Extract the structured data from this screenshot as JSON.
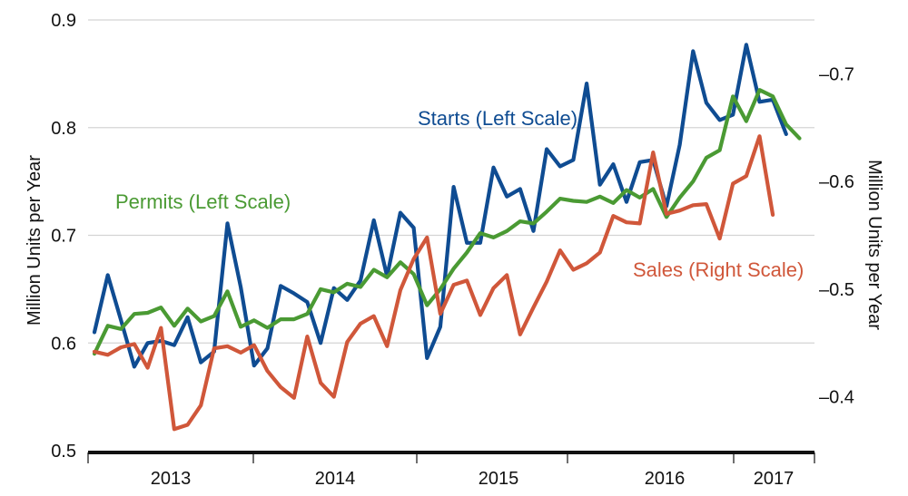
{
  "chart_data": {
    "type": "line",
    "x_start": "2012-07",
    "x_end": "2017-05",
    "x_tick_labels": [
      "2013",
      "2014",
      "2015",
      "2016",
      "2017"
    ],
    "left_axis": {
      "label": "Million Units per Year",
      "ylim": [
        0.5,
        0.9
      ],
      "ticks": [
        "0.5",
        "0.6",
        "0.7",
        "0.8",
        "0.9"
      ]
    },
    "right_axis": {
      "label": "Million Units per Year",
      "ylim": [
        0.35,
        0.75
      ],
      "ticks": [
        "–0.4",
        "–0.5",
        "–0.6",
        "–0.7"
      ]
    },
    "grid": "horizontal",
    "series": [
      {
        "name": "Starts (Left Scale)",
        "axis": "left",
        "color": "#0f4c92",
        "values": [
          0.61,
          0.663,
          0.621,
          0.578,
          0.6,
          0.602,
          0.598,
          0.624,
          0.582,
          0.592,
          0.711,
          0.652,
          0.579,
          0.595,
          0.653,
          0.646,
          0.638,
          0.6,
          0.651,
          0.64,
          0.658,
          0.714,
          0.662,
          0.721,
          0.707,
          0.586,
          0.615,
          0.745,
          0.693,
          0.693,
          0.763,
          0.736,
          0.743,
          0.704,
          0.78,
          0.764,
          0.77,
          0.841,
          0.747,
          0.766,
          0.731,
          0.768,
          0.77,
          0.727,
          0.784,
          0.871,
          0.823,
          0.807,
          0.812,
          0.877,
          0.824,
          0.826,
          0.794
        ]
      },
      {
        "name": "Permits (Left Scale)",
        "axis": "left",
        "color": "#4a9a33",
        "values": [
          0.59,
          0.616,
          0.613,
          0.627,
          0.628,
          0.633,
          0.616,
          0.632,
          0.62,
          0.625,
          0.648,
          0.615,
          0.621,
          0.614,
          0.622,
          0.622,
          0.627,
          0.65,
          0.647,
          0.655,
          0.652,
          0.668,
          0.661,
          0.675,
          0.664,
          0.635,
          0.65,
          0.669,
          0.684,
          0.702,
          0.698,
          0.704,
          0.713,
          0.711,
          0.722,
          0.734,
          0.732,
          0.731,
          0.736,
          0.73,
          0.742,
          0.735,
          0.743,
          0.717,
          0.735,
          0.75,
          0.772,
          0.779,
          0.829,
          0.806,
          0.835,
          0.829,
          0.803,
          0.79
        ]
      },
      {
        "name": "Sales (Right Scale)",
        "axis": "right",
        "color": "#d0573a",
        "values": [
          0.442,
          0.439,
          0.446,
          0.449,
          0.427,
          0.464,
          0.37,
          0.374,
          0.392,
          0.445,
          0.447,
          0.441,
          0.448,
          0.424,
          0.409,
          0.399,
          0.456,
          0.413,
          0.4,
          0.451,
          0.468,
          0.475,
          0.447,
          0.499,
          0.528,
          0.548,
          0.477,
          0.504,
          0.508,
          0.476,
          0.501,
          0.513,
          0.458,
          0.483,
          0.507,
          0.536,
          0.518,
          0.524,
          0.534,
          0.568,
          0.562,
          0.561,
          0.627,
          0.57,
          0.573,
          0.578,
          0.579,
          0.547,
          0.598,
          0.605,
          0.642,
          0.569
        ]
      }
    ]
  }
}
